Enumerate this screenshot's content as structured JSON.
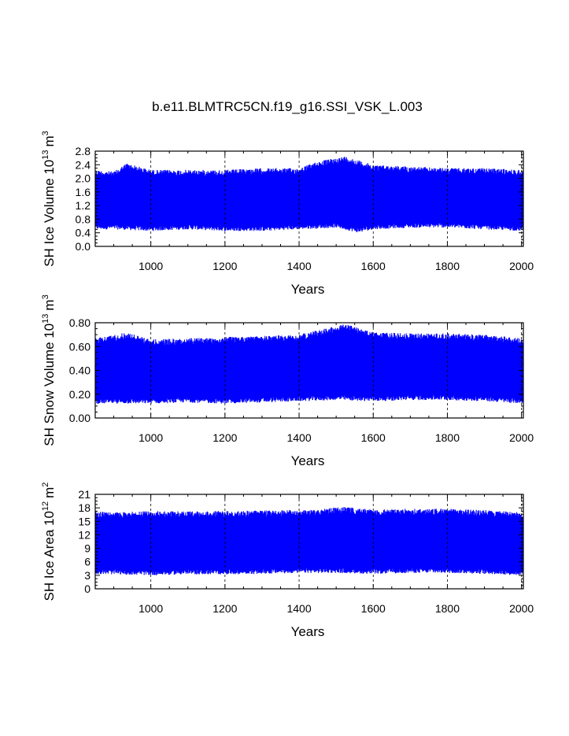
{
  "title": "b.e11.BLMTRC5CN.f19_g16.SSI_VSK_L.003",
  "chart_data": [
    {
      "type": "line",
      "ylabel": "SH Ice Volume 10",
      "ylabel_exp": "13",
      "ylabel_unit": "m",
      "ylabel_unit_exp": "3",
      "xlabel": "Years",
      "xlim": [
        850,
        2005
      ],
      "ylim": [
        0.0,
        2.8
      ],
      "x_ticks": [
        1000,
        1200,
        1400,
        1600,
        1800,
        2000
      ],
      "x_tick_labels": [
        "1000",
        "1200",
        "1400",
        "1600",
        "1800",
        "2000"
      ],
      "y_ticks": [
        0.0,
        0.4,
        0.8,
        1.2,
        1.6,
        2.0,
        2.4,
        2.8
      ],
      "y_tick_labels": [
        "0.0",
        "0.4",
        "0.8",
        "1.2",
        "1.6",
        "2.0",
        "2.4",
        "2.8"
      ],
      "series": [
        {
          "color": "#0000ff",
          "seasonal_cycle": true,
          "typical_min": 0.5,
          "typical_max": 2.25,
          "max_envelope": [
            [
              850,
              2.25
            ],
            [
              900,
              2.2
            ],
            [
              935,
              2.45
            ],
            [
              1000,
              2.25
            ],
            [
              1100,
              2.25
            ],
            [
              1200,
              2.25
            ],
            [
              1300,
              2.3
            ],
            [
              1400,
              2.3
            ],
            [
              1450,
              2.5
            ],
            [
              1525,
              2.65
            ],
            [
              1600,
              2.4
            ],
            [
              1700,
              2.35
            ],
            [
              1800,
              2.3
            ],
            [
              1900,
              2.3
            ],
            [
              2005,
              2.25
            ]
          ],
          "min_envelope": [
            [
              850,
              0.5
            ],
            [
              900,
              0.5
            ],
            [
              1000,
              0.45
            ],
            [
              1100,
              0.5
            ],
            [
              1200,
              0.45
            ],
            [
              1300,
              0.45
            ],
            [
              1400,
              0.5
            ],
            [
              1500,
              0.55
            ],
            [
              1560,
              0.4
            ],
            [
              1600,
              0.5
            ],
            [
              1700,
              0.55
            ],
            [
              1800,
              0.55
            ],
            [
              1900,
              0.5
            ],
            [
              2005,
              0.45
            ]
          ]
        }
      ]
    },
    {
      "type": "line",
      "ylabel": "SH Snow Volume 10",
      "ylabel_exp": "13",
      "ylabel_unit": "m",
      "ylabel_unit_exp": "3",
      "xlabel": "Years",
      "xlim": [
        850,
        2005
      ],
      "ylim": [
        0.0,
        0.8
      ],
      "x_ticks": [
        1000,
        1200,
        1400,
        1600,
        1800,
        2000
      ],
      "x_tick_labels": [
        "1000",
        "1200",
        "1400",
        "1600",
        "1800",
        "2000"
      ],
      "y_ticks": [
        0.0,
        0.2,
        0.4,
        0.6,
        0.8
      ],
      "y_tick_labels": [
        "0.00",
        "0.20",
        "0.40",
        "0.60",
        "0.80"
      ],
      "series": [
        {
          "color": "#0000ff",
          "seasonal_cycle": true,
          "typical_min": 0.14,
          "typical_max": 0.67,
          "max_envelope": [
            [
              850,
              0.67
            ],
            [
              935,
              0.72
            ],
            [
              1000,
              0.66
            ],
            [
              1100,
              0.67
            ],
            [
              1200,
              0.68
            ],
            [
              1300,
              0.69
            ],
            [
              1400,
              0.7
            ],
            [
              1450,
              0.74
            ],
            [
              1525,
              0.79
            ],
            [
              1600,
              0.72
            ],
            [
              1700,
              0.71
            ],
            [
              1800,
              0.71
            ],
            [
              1900,
              0.7
            ],
            [
              2005,
              0.67
            ]
          ],
          "min_envelope": [
            [
              850,
              0.12
            ],
            [
              900,
              0.12
            ],
            [
              1000,
              0.12
            ],
            [
              1100,
              0.13
            ],
            [
              1200,
              0.12
            ],
            [
              1300,
              0.13
            ],
            [
              1400,
              0.14
            ],
            [
              1500,
              0.15
            ],
            [
              1600,
              0.14
            ],
            [
              1700,
              0.15
            ],
            [
              1800,
              0.15
            ],
            [
              1900,
              0.14
            ],
            [
              2005,
              0.12
            ]
          ]
        }
      ]
    },
    {
      "type": "line",
      "ylabel": "SH Ice Area 10",
      "ylabel_exp": "12",
      "ylabel_unit": "m",
      "ylabel_unit_exp": "2",
      "xlabel": "Years",
      "xlim": [
        850,
        2005
      ],
      "ylim": [
        0,
        21
      ],
      "x_ticks": [
        1000,
        1200,
        1400,
        1600,
        1800,
        2000
      ],
      "x_tick_labels": [
        "1000",
        "1200",
        "1400",
        "1600",
        "1800",
        "2000"
      ],
      "y_ticks": [
        0,
        3,
        6,
        9,
        12,
        15,
        18,
        21
      ],
      "y_tick_labels": [
        "0",
        "3",
        "6",
        "9",
        "12",
        "15",
        "18",
        "21"
      ],
      "series": [
        {
          "color": "#0000ff",
          "seasonal_cycle": true,
          "typical_min": 3.5,
          "typical_max": 17.2,
          "max_envelope": [
            [
              850,
              17.2
            ],
            [
              900,
              17.0
            ],
            [
              1000,
              17.3
            ],
            [
              1100,
              17.2
            ],
            [
              1200,
              17.3
            ],
            [
              1300,
              17.4
            ],
            [
              1400,
              17.5
            ],
            [
              1525,
              18.2
            ],
            [
              1600,
              17.6
            ],
            [
              1700,
              17.8
            ],
            [
              1800,
              17.8
            ],
            [
              1900,
              17.5
            ],
            [
              2005,
              17.0
            ]
          ],
          "min_envelope": [
            [
              850,
              3.3
            ],
            [
              900,
              3.2
            ],
            [
              1000,
              3.0
            ],
            [
              1100,
              3.2
            ],
            [
              1200,
              3.2
            ],
            [
              1300,
              3.3
            ],
            [
              1400,
              3.5
            ],
            [
              1500,
              3.5
            ],
            [
              1600,
              3.3
            ],
            [
              1700,
              3.5
            ],
            [
              1800,
              3.5
            ],
            [
              1900,
              3.3
            ],
            [
              2005,
              3.0
            ]
          ]
        }
      ]
    }
  ]
}
